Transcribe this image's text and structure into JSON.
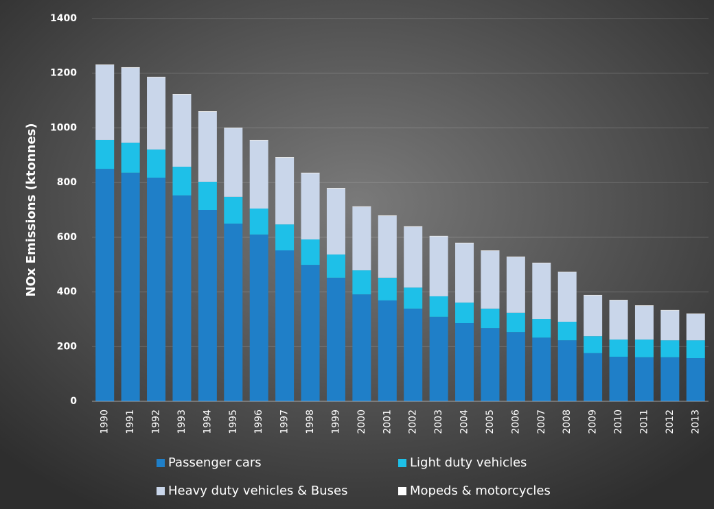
{
  "chart_data": {
    "type": "stacked_bar",
    "y_axis_label": "NOx Emissions (ktonnes)",
    "categories": [
      "1990",
      "1991",
      "1992",
      "1993",
      "1994",
      "1995",
      "1996",
      "1997",
      "1998",
      "1999",
      "2000",
      "2001",
      "2002",
      "2003",
      "2004",
      "2005",
      "2006",
      "2007",
      "2008",
      "2009",
      "2010",
      "2011",
      "2012",
      "2013"
    ],
    "series": [
      {
        "name": "Passenger cars",
        "color": "#1f7fc8",
        "values": [
          850,
          836,
          818,
          753,
          700,
          650,
          610,
          552,
          499,
          452,
          391,
          369,
          339,
          309,
          286,
          268,
          253,
          233,
          223,
          176,
          163,
          161,
          161,
          158
        ]
      },
      {
        "name": "Light duty vehicles",
        "color": "#1ec0e8",
        "values": [
          106,
          110,
          103,
          105,
          103,
          98,
          95,
          95,
          93,
          85,
          88,
          83,
          77,
          75,
          75,
          71,
          71,
          68,
          68,
          62,
          63,
          65,
          62,
          65
        ]
      },
      {
        "name": "Heavy duty vehicles & Buses",
        "color": "#c9d6ea",
        "values": [
          274,
          274,
          264,
          264,
          256,
          251,
          249,
          244,
          242,
          241,
          232,
          226,
          222,
          219,
          217,
          211,
          203,
          204,
          181,
          149,
          143,
          123,
          109,
          96
        ]
      },
      {
        "name": "Mopeds & motorcycles",
        "color": "#ffffff",
        "values": [
          2,
          2,
          2,
          2,
          2,
          2,
          2,
          2,
          2,
          2,
          2,
          2,
          2,
          2,
          2,
          2,
          2,
          2,
          2,
          2,
          2,
          2,
          2,
          2
        ]
      }
    ],
    "ylim": [
      0,
      1400
    ],
    "yticks": [
      0,
      200,
      400,
      600,
      800,
      1000,
      1200,
      1400
    ],
    "grid": true,
    "legend": "bottom"
  }
}
